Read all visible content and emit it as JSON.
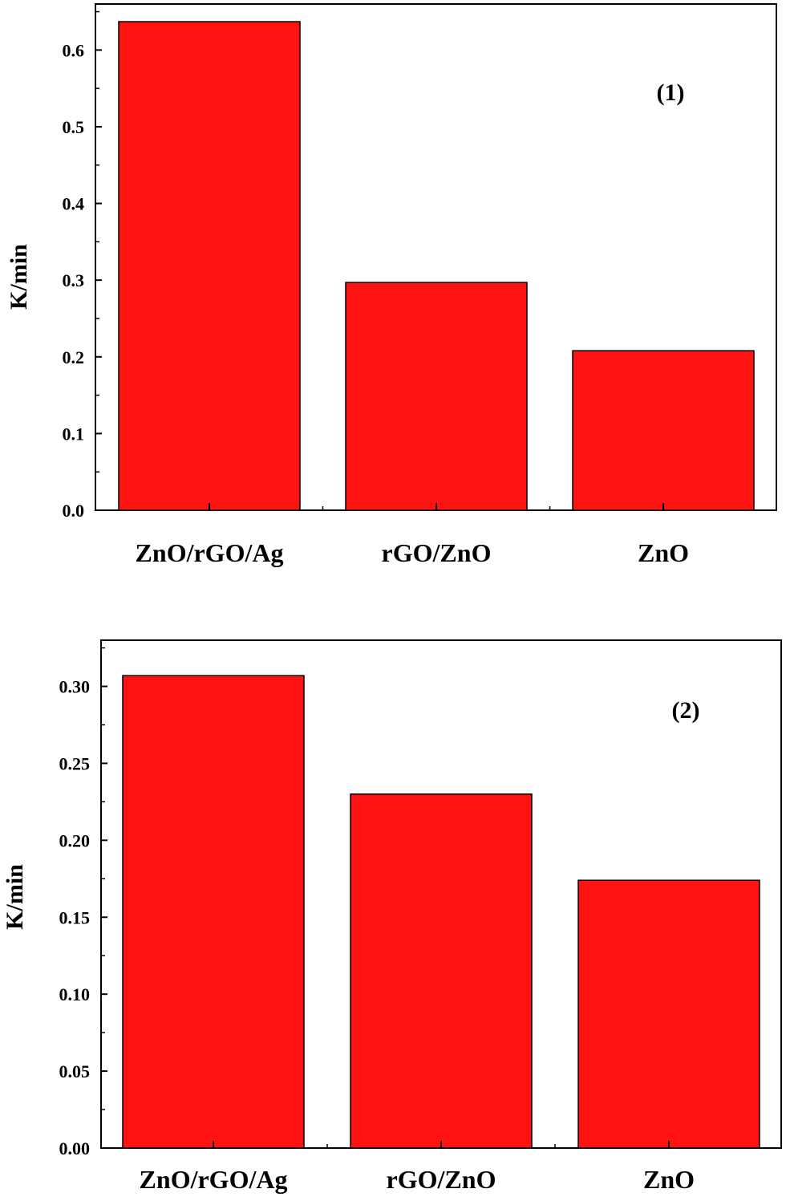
{
  "chart_data": [
    {
      "type": "bar",
      "panel_label": "(1)",
      "categories": [
        "ZnO/rGO/Ag",
        "rGO/ZnO",
        "ZnO"
      ],
      "values": [
        0.637,
        0.297,
        0.208
      ],
      "ylabel": "K/min",
      "ylim": [
        0,
        0.66
      ],
      "yticks": [
        "0.0",
        "0.1",
        "0.2",
        "0.3",
        "0.4",
        "0.5",
        "0.6"
      ],
      "bar_color": "#ff1212",
      "grid": false
    },
    {
      "type": "bar",
      "panel_label": "(2)",
      "categories": [
        "ZnO/rGO/Ag",
        "rGO/ZnO",
        "ZnO"
      ],
      "values": [
        0.307,
        0.23,
        0.174
      ],
      "ylabel": "K/min",
      "ylim": [
        0,
        0.33
      ],
      "yticks": [
        "0.00",
        "0.05",
        "0.10",
        "0.15",
        "0.20",
        "0.25",
        "0.30"
      ],
      "bar_color": "#ff1212",
      "grid": false
    }
  ]
}
